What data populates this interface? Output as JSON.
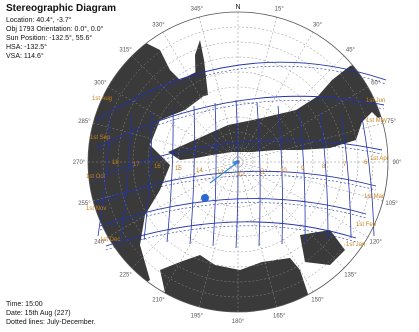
{
  "header": {
    "title": "Stereographic Diagram",
    "location": "Location: 40.4°, -3.7°",
    "orientation": "Obj 1793 Orientation: 0.0°, 0.0°",
    "sun_position": "Sun Position: -132.5°, 55.6°",
    "hsa": "HSA: -132.5°",
    "vsa": "VSA: 114.6°"
  },
  "footer": {
    "time": "Time: 15:00",
    "date": "Date: 15th Aug (227)",
    "note": "Dotted lines: July-December."
  },
  "compass": {
    "north": "N",
    "azimuth_labels": [
      {
        "label": "0°",
        "az": 0
      },
      {
        "label": "15°",
        "az": 15
      },
      {
        "label": "30°",
        "az": 30
      },
      {
        "label": "45°",
        "az": 45
      },
      {
        "label": "60°",
        "az": 60
      },
      {
        "label": "75°",
        "az": 75
      },
      {
        "label": "90°",
        "az": 90
      },
      {
        "label": "105°",
        "az": 105
      },
      {
        "label": "120°",
        "az": 120
      },
      {
        "label": "135°",
        "az": 135
      },
      {
        "label": "150°",
        "az": 150
      },
      {
        "label": "165°",
        "az": 165
      },
      {
        "label": "180°",
        "az": 180
      },
      {
        "label": "195°",
        "az": 195
      },
      {
        "label": "210°",
        "az": 210
      },
      {
        "label": "225°",
        "az": 225
      },
      {
        "label": "240°",
        "az": 240
      },
      {
        "label": "255°",
        "az": 255
      },
      {
        "label": "270°",
        "az": 270
      },
      {
        "label": "285°",
        "az": 285
      },
      {
        "label": "300°",
        "az": 300
      },
      {
        "label": "315°",
        "az": 315
      },
      {
        "label": "330°",
        "az": 330
      },
      {
        "label": "345°",
        "az": 345
      }
    ]
  },
  "date_labels_right": [
    "1st Jun",
    "1st May",
    "1st Apr",
    "1st Mar",
    "1st Feb",
    "1st Jan"
  ],
  "date_labels_left": [
    "1st Aug",
    "1st Sep",
    "1st Oct",
    "1st Nov",
    "1st Dec"
  ],
  "hour_labels": [
    "18",
    "17",
    "16",
    "15",
    "14",
    "13",
    "12",
    "11",
    "10",
    "9",
    "8",
    "7",
    "6"
  ],
  "colors": {
    "sun_path": "#2233aa",
    "obstruction": "#3a3a3a",
    "grid": "#8a8a8a",
    "label": "#c8801a",
    "sun": "#2a6ad0"
  },
  "sun_marker": {
    "azimuth": -132.5,
    "altitude": 55.6
  }
}
